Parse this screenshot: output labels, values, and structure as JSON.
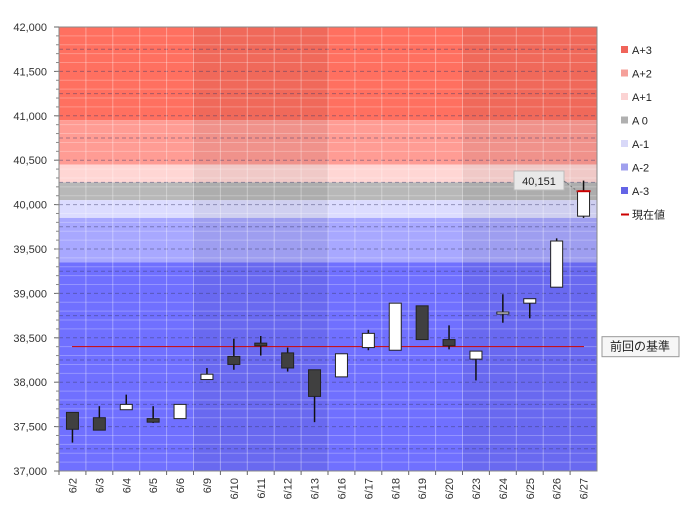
{
  "chart_data": {
    "type": "candlestick",
    "ylim": [
      37000,
      42000
    ],
    "y_ticks": [
      "37,000",
      "37,500",
      "38,000",
      "38,500",
      "39,000",
      "39,500",
      "40,000",
      "40,500",
      "41,000",
      "41,500",
      "42,000"
    ],
    "y_tick_values": [
      37000,
      37500,
      38000,
      38500,
      39000,
      39500,
      40000,
      40500,
      41000,
      41500,
      42000
    ],
    "categories": [
      "6/2",
      "6/3",
      "6/4",
      "6/5",
      "6/6",
      "6/9",
      "6/10",
      "6/11",
      "6/12",
      "6/13",
      "6/16",
      "6/17",
      "6/18",
      "6/19",
      "6/20",
      "6/23",
      "6/24",
      "6/25",
      "6/26",
      "6/27"
    ],
    "candles": [
      {
        "date": "6/2",
        "open": 37660,
        "close": 37470,
        "high": 37660,
        "low": 37320
      },
      {
        "date": "6/3",
        "open": 37600,
        "close": 37460,
        "high": 37730,
        "low": 37460
      },
      {
        "date": "6/4",
        "open": 37690,
        "close": 37750,
        "high": 37860,
        "low": 37690
      },
      {
        "date": "6/5",
        "open": 37590,
        "close": 37550,
        "high": 37730,
        "low": 37540
      },
      {
        "date": "6/6",
        "open": 37590,
        "close": 37750,
        "high": 37750,
        "low": 37590
      },
      {
        "date": "6/9",
        "open": 38030,
        "close": 38090,
        "high": 38160,
        "low": 38030
      },
      {
        "date": "6/10",
        "open": 38290,
        "close": 38200,
        "high": 38490,
        "low": 38140
      },
      {
        "date": "6/11",
        "open": 38440,
        "close": 38410,
        "high": 38520,
        "low": 38300
      },
      {
        "date": "6/12",
        "open": 38330,
        "close": 38160,
        "high": 38390,
        "low": 38120
      },
      {
        "date": "6/13",
        "open": 38140,
        "close": 37840,
        "high": 38140,
        "low": 37550
      },
      {
        "date": "6/16",
        "open": 38060,
        "close": 38320,
        "high": 38320,
        "low": 38060
      },
      {
        "date": "6/17",
        "open": 38390,
        "close": 38550,
        "high": 38590,
        "low": 38360
      },
      {
        "date": "6/18",
        "open": 38360,
        "close": 38890,
        "high": 38890,
        "low": 38360
      },
      {
        "date": "6/19",
        "open": 38860,
        "close": 38480,
        "high": 38860,
        "low": 38480
      },
      {
        "date": "6/20",
        "open": 38480,
        "close": 38410,
        "high": 38640,
        "low": 38370
      },
      {
        "date": "6/23",
        "open": 38260,
        "close": 38350,
        "high": 38350,
        "low": 38020
      },
      {
        "date": "6/24",
        "open": 38780,
        "close": 38790,
        "high": 38990,
        "low": 38670
      },
      {
        "date": "6/25",
        "open": 38890,
        "close": 38940,
        "high": 38940,
        "low": 38720
      },
      {
        "date": "6/26",
        "open": 39070,
        "close": 39590,
        "high": 39620,
        "low": 39070
      },
      {
        "date": "6/27",
        "open": 39870,
        "close": 40151,
        "high": 40270,
        "low": 39850
      }
    ],
    "current_value": 40151,
    "current_value_label": "40,151",
    "reference_line": 38400,
    "reference_label": "前回の基準",
    "bands": [
      {
        "name": "A+3",
        "from": 40950,
        "to": 42000,
        "color": "#ff7060",
        "legend_color": "#f0645a"
      },
      {
        "name": "A+2",
        "from": 40450,
        "to": 40950,
        "color": "#ff9c94",
        "legend_color": "#f5a09a"
      },
      {
        "name": "A+1",
        "from": 40250,
        "to": 40450,
        "color": "#ffd6d4",
        "legend_color": "#fbd3d3"
      },
      {
        "name": "A 0",
        "from": 40050,
        "to": 40250,
        "color": "#b8b8b8",
        "legend_color": "#b0b0b0"
      },
      {
        "name": "A-1",
        "from": 39850,
        "to": 40050,
        "color": "#dcdcff",
        "legend_color": "#d8d8f8"
      },
      {
        "name": "A-2",
        "from": 39350,
        "to": 39850,
        "color": "#a8a8ff",
        "legend_color": "#a0a0ee"
      },
      {
        "name": "A-3",
        "from": 37000,
        "to": 39350,
        "color": "#7070ff",
        "legend_color": "#6464e6"
      }
    ],
    "legend": [
      {
        "label": "A+3",
        "color": "#f0645a",
        "kind": "square"
      },
      {
        "label": "A+2",
        "color": "#f5a09a",
        "kind": "square"
      },
      {
        "label": "A+1",
        "color": "#fbd3d3",
        "kind": "square"
      },
      {
        "label": "A 0",
        "color": "#b0b0b0",
        "kind": "square"
      },
      {
        "label": "A-1",
        "color": "#d8d8f8",
        "kind": "square"
      },
      {
        "label": "A-2",
        "color": "#a0a0ee",
        "kind": "square"
      },
      {
        "label": "A-3",
        "color": "#6464e6",
        "kind": "square"
      },
      {
        "label": "現在値",
        "color": "#cc0000",
        "kind": "line"
      }
    ],
    "week_shading": [
      false,
      true,
      false,
      true,
      false
    ],
    "colors": {
      "bullish": "#ffffff",
      "bearish": "#404040",
      "outline": "#222222",
      "reference": "#cc0000",
      "grid": "#555588"
    }
  }
}
